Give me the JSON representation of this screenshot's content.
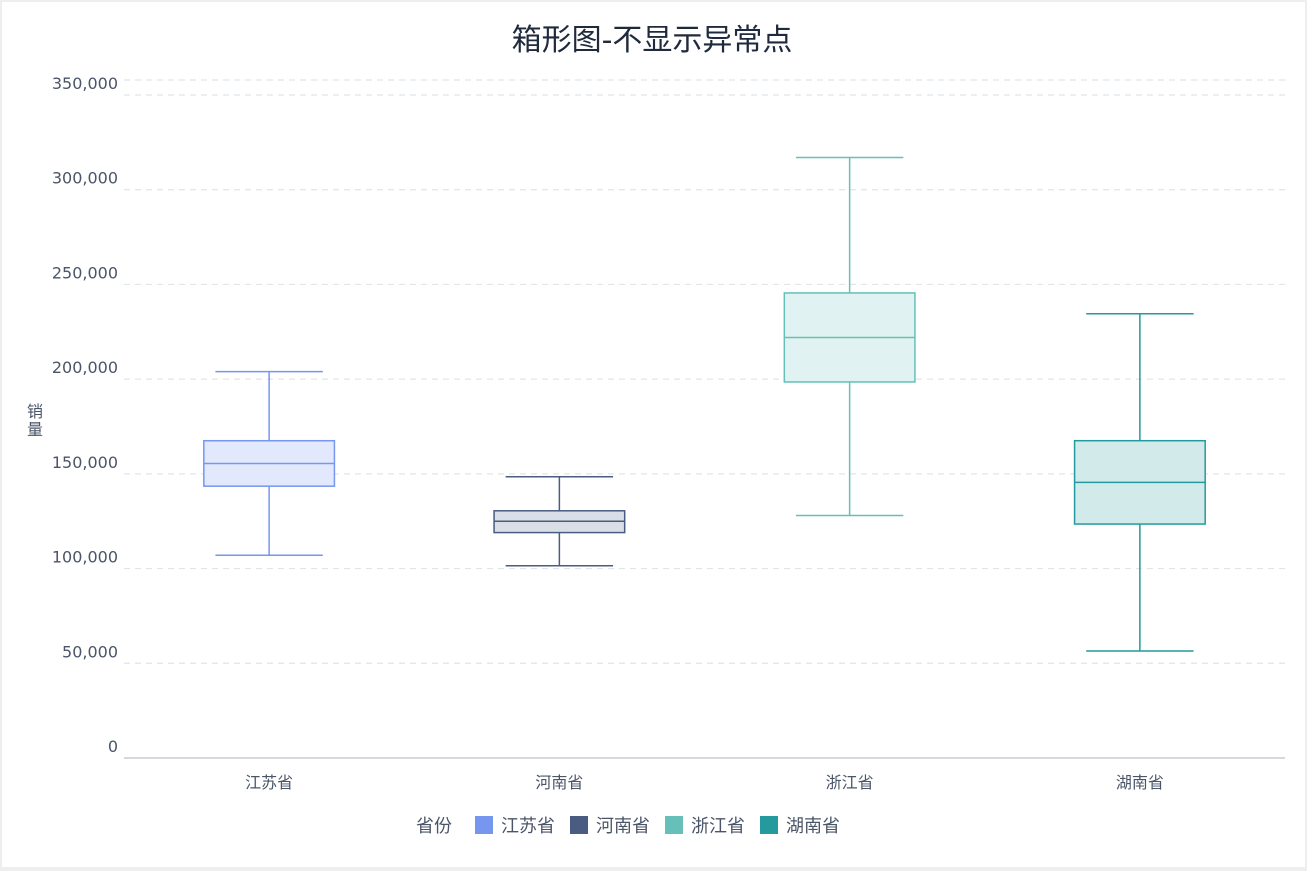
{
  "chart_data": {
    "type": "boxplot",
    "title": "箱形图-不显示异常点",
    "ylabel": "销量",
    "xlabel": "",
    "ylim": [
      0,
      350000
    ],
    "yticks": [
      0,
      50000,
      100000,
      150000,
      200000,
      250000,
      300000,
      350000
    ],
    "ytick_labels": [
      "0",
      "50,000",
      "100,000",
      "150,000",
      "200,000",
      "250,000",
      "300,000",
      "350,000"
    ],
    "grid": true,
    "legend": {
      "title": "省份",
      "position": "bottom",
      "entries": [
        "江苏省",
        "河南省",
        "浙江省",
        "湖南省"
      ]
    },
    "categories": [
      "江苏省",
      "河南省",
      "浙江省",
      "湖南省"
    ],
    "series": [
      {
        "name": "江苏省",
        "color": "#7696f0",
        "fill": "#e3e9fc",
        "min": 107000,
        "q1": 143500,
        "median": 155500,
        "q3": 167500,
        "max": 204000
      },
      {
        "name": "河南省",
        "color": "#4a5c82",
        "fill": "#dadee6",
        "min": 101500,
        "q1": 119000,
        "median": 125000,
        "q3": 130500,
        "max": 148500
      },
      {
        "name": "浙江省",
        "color": "#66bfb8",
        "fill": "#e0f2f1",
        "min": 128000,
        "q1": 198500,
        "median": 222000,
        "q3": 245500,
        "max": 317000
      },
      {
        "name": "湖南省",
        "color": "#249a9e",
        "fill": "#d3eaeb",
        "min": 56500,
        "q1": 123500,
        "median": 145500,
        "q3": 167500,
        "max": 234500
      }
    ]
  }
}
